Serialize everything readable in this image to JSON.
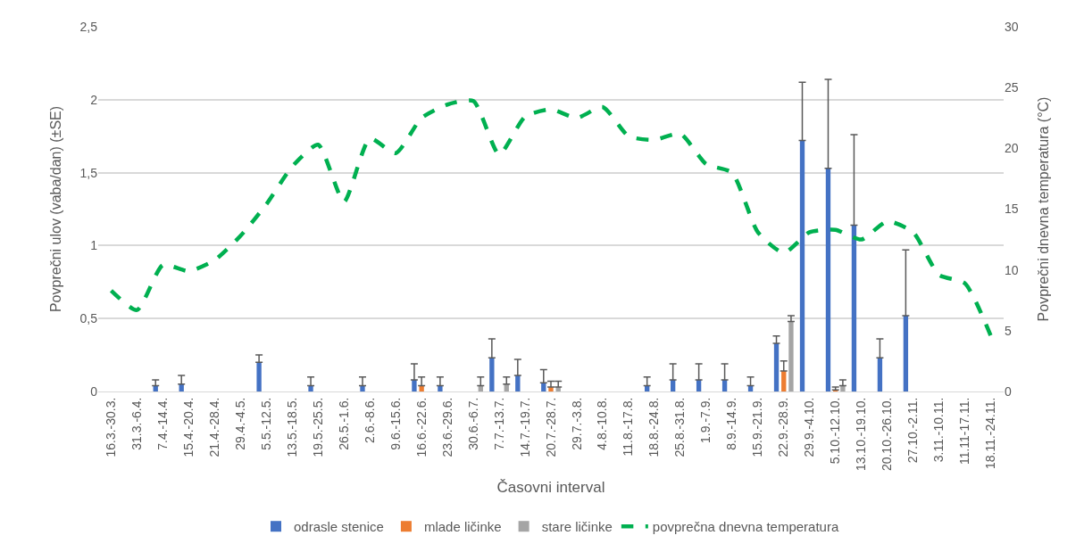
{
  "chart_data": {
    "type": "bar",
    "xlabel": "Časovni interval",
    "ylabel": "Povprečni ulov (vaba/dan) (±SE)",
    "y2label": "Povprečni dnevna temperatura (°C)",
    "categories": [
      "16.3.-30.3.",
      "31.3.-6.4.",
      "7.4.-14.4.",
      "15.4.-20.4.",
      "21.4.-28.4.",
      "29.4.-4.5.",
      "5.5.-12.5.",
      "13.5.-18.5.",
      "19.5.-25.5.",
      "26.5.-1.6.",
      "2.6.-8.6.",
      "9.6.-15.6.",
      "16.6.-22.6.",
      "23.6.-29.6.",
      "30.6.-6.7.",
      "7.7.-13.7.",
      "14.7.-19.7.",
      "20.7.-28.7.",
      "29.7.-3.8.",
      "4.8.-10.8.",
      "11.8.-17.8.",
      "18.8.-24.8.",
      "25.8.-31.8.",
      "1.9.-7.9.",
      "8.9.-14.9.",
      "15.9.-21.9.",
      "22.9.-28.9.",
      "29.9.-4.10.",
      "5.10.-12.10.",
      "13.10.-19.10.",
      "20.10.-26.10.",
      "27.10.-2.11.",
      "3.11.-10.11.",
      "11.11-17.11.",
      "18.11.-24.11."
    ],
    "series": [
      {
        "name": "odrasle stenice",
        "color": "#4472c4",
        "values": [
          null,
          null,
          0.04,
          0.05,
          null,
          null,
          0.2,
          null,
          0.04,
          null,
          0.04,
          null,
          0.08,
          0.04,
          null,
          0.23,
          0.11,
          0.06,
          null,
          null,
          null,
          0.04,
          0.08,
          0.08,
          0.08,
          0.04,
          0.33,
          1.72,
          1.53,
          1.14,
          0.23,
          0.52,
          null,
          null,
          null
        ],
        "errors": [
          null,
          null,
          [
            0.04,
            0.08
          ],
          [
            0.05,
            0.11
          ],
          null,
          null,
          [
            0.2,
            0.25
          ],
          null,
          [
            0.04,
            0.1
          ],
          null,
          [
            0.04,
            0.1
          ],
          null,
          [
            0.08,
            0.19
          ],
          [
            0.04,
            0.1
          ],
          null,
          [
            0.23,
            0.36
          ],
          [
            0.11,
            0.22
          ],
          [
            0.06,
            0.15
          ],
          null,
          null,
          null,
          [
            0.04,
            0.1
          ],
          [
            0.08,
            0.19
          ],
          [
            0.08,
            0.19
          ],
          [
            0.08,
            0.19
          ],
          [
            0.04,
            0.1
          ],
          [
            0.33,
            0.38
          ],
          [
            1.72,
            2.12
          ],
          [
            1.53,
            2.14
          ],
          [
            1.14,
            1.76
          ],
          [
            0.23,
            0.36
          ],
          [
            0.52,
            0.97
          ],
          null,
          null,
          null
        ]
      },
      {
        "name": "mlade ličinke",
        "color": "#ed7d31",
        "values": [
          null,
          null,
          null,
          null,
          null,
          null,
          null,
          null,
          null,
          null,
          null,
          null,
          0.04,
          null,
          null,
          null,
          null,
          0.03,
          null,
          null,
          null,
          null,
          null,
          null,
          null,
          null,
          0.14,
          null,
          0.01,
          null,
          null,
          null,
          null,
          null,
          null
        ],
        "errors": [
          null,
          null,
          null,
          null,
          null,
          null,
          null,
          null,
          null,
          null,
          null,
          null,
          [
            0.04,
            0.1
          ],
          null,
          null,
          null,
          null,
          [
            0.03,
            0.07
          ],
          null,
          null,
          null,
          null,
          null,
          null,
          null,
          null,
          [
            0.14,
            0.21
          ],
          null,
          [
            0.01,
            0.03
          ],
          null,
          null,
          null,
          null,
          null,
          null
        ]
      },
      {
        "name": "stare ličinke",
        "color": "#a5a5a5",
        "values": [
          null,
          null,
          null,
          null,
          null,
          null,
          null,
          null,
          null,
          null,
          null,
          null,
          null,
          null,
          0.04,
          0.05,
          null,
          0.03,
          null,
          null,
          null,
          null,
          null,
          null,
          null,
          null,
          0.48,
          null,
          0.04,
          null,
          null,
          null,
          null,
          null,
          null
        ],
        "errors": [
          null,
          null,
          null,
          null,
          null,
          null,
          null,
          null,
          null,
          null,
          null,
          null,
          null,
          null,
          [
            0.04,
            0.1
          ],
          [
            0.05,
            0.1
          ],
          null,
          [
            0.03,
            0.07
          ],
          null,
          null,
          null,
          null,
          null,
          null,
          null,
          null,
          [
            0.48,
            0.52
          ],
          null,
          [
            0.04,
            0.08
          ],
          null,
          null,
          null,
          null,
          null,
          null
        ]
      },
      {
        "name": "povprečna dnevna temperatura",
        "type": "line",
        "axis": "y2",
        "color": "#00b050",
        "line_style": "dashed",
        "values": [
          8.3,
          6.7,
          10.4,
          9.9,
          10.8,
          12.8,
          15.4,
          18.5,
          20.3,
          15.6,
          20.8,
          19.6,
          22.5,
          23.6,
          23.9,
          19.5,
          22.6,
          23.2,
          22.5,
          23.4,
          21.0,
          20.7,
          21.2,
          18.7,
          18.0,
          13.1,
          11.4,
          13.1,
          13.3,
          12.5,
          14.0,
          13.1,
          9.6,
          8.9,
          4.6
        ]
      }
    ],
    "ylim": [
      0,
      2.5
    ],
    "yticks": [
      0,
      {
        "value": 0.5,
        "label": "0,5"
      },
      1,
      {
        "value": 1.5,
        "label": "1,5"
      },
      2,
      {
        "value": 2.5,
        "label": "2,5"
      }
    ],
    "y2lim": [
      0,
      30
    ],
    "y2ticks": [
      0,
      5,
      10,
      15,
      20,
      25,
      30
    ],
    "grid": "y",
    "legend": "bottom"
  }
}
